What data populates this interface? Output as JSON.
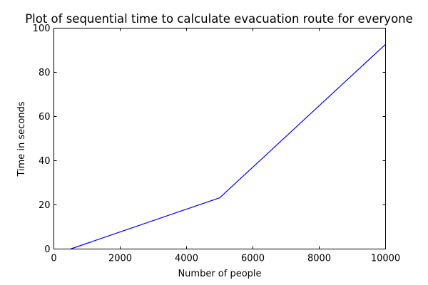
{
  "chart_data": {
    "type": "line",
    "title": "Plot of sequential time to calculate evacuation route for everyone",
    "xlabel": "Number of people",
    "ylabel": "Time in seconds",
    "xlim": [
      0,
      10000
    ],
    "ylim": [
      0,
      100
    ],
    "xticks": [
      0,
      2000,
      4000,
      6000,
      8000,
      10000
    ],
    "yticks": [
      0,
      20,
      40,
      60,
      80,
      100
    ],
    "xtick_labels": [
      "0",
      "2000",
      "4000",
      "6000",
      "8000",
      "10000"
    ],
    "ytick_labels": [
      "0",
      "20",
      "40",
      "60",
      "80",
      "100"
    ],
    "grid": false,
    "series": [
      {
        "color": "#0000ff",
        "x": [
          500,
          5000,
          10000
        ],
        "y": [
          0,
          23.2,
          92.7
        ]
      }
    ]
  }
}
